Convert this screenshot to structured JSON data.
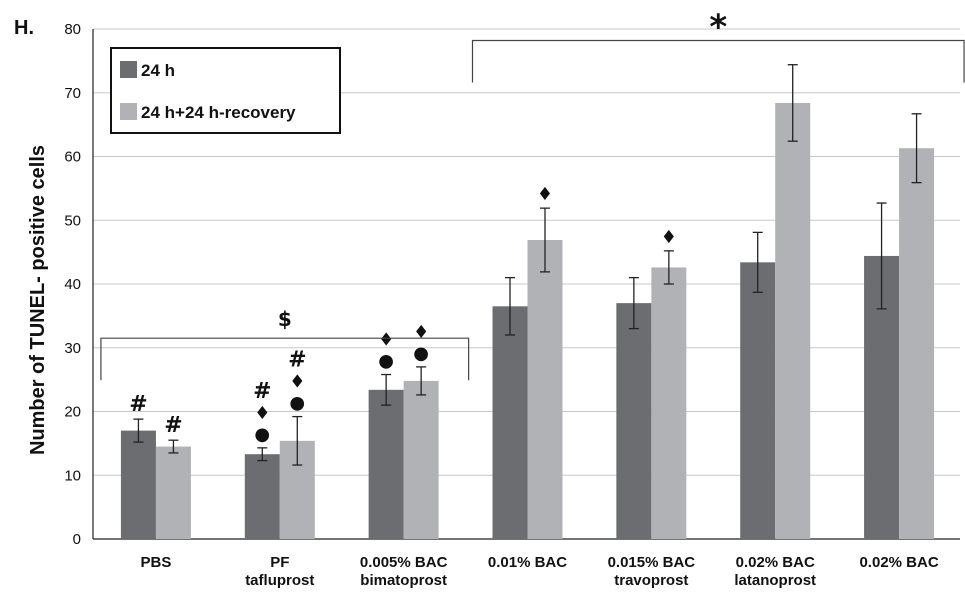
{
  "panel_label": "H.",
  "chart_data": {
    "type": "bar",
    "ylabel": "Number of TUNEL- positive cells",
    "xlabel": "",
    "ylim": [
      0,
      80
    ],
    "yticks": [
      0,
      10,
      20,
      30,
      40,
      50,
      60,
      70,
      80
    ],
    "grid": true,
    "legend_position": "top-left",
    "categories": [
      [
        "PBS"
      ],
      [
        "PF",
        "tafluprost"
      ],
      [
        "0.005% BAC",
        "bimatoprost"
      ],
      [
        "0.01% BAC"
      ],
      [
        "0.015% BAC",
        "travoprost"
      ],
      [
        "0.02% BAC",
        "latanoprost"
      ],
      [
        "0.02% BAC"
      ]
    ],
    "series": [
      {
        "name": "24 h",
        "color": "#6b6d71",
        "values": [
          17.0,
          13.3,
          23.4,
          36.5,
          37.0,
          43.4,
          44.4
        ],
        "errors": [
          1.8,
          1.0,
          2.4,
          4.5,
          4.0,
          4.7,
          8.3
        ]
      },
      {
        "name": "24 h+24 h-recovery",
        "color": "#b1b2b5",
        "values": [
          14.5,
          15.4,
          24.8,
          46.9,
          42.6,
          68.4,
          61.3
        ],
        "errors": [
          1.0,
          3.8,
          2.2,
          5.0,
          2.6,
          6.0,
          5.4
        ]
      }
    ],
    "annotations": [
      {
        "category": 0,
        "series": 0,
        "symbols": [
          "#"
        ]
      },
      {
        "category": 0,
        "series": 1,
        "symbols": [
          "#"
        ]
      },
      {
        "category": 1,
        "series": 0,
        "symbols": [
          "#",
          "♦",
          "●"
        ]
      },
      {
        "category": 1,
        "series": 1,
        "symbols": [
          "#",
          "♦",
          "●"
        ]
      },
      {
        "category": 2,
        "series": 0,
        "symbols": [
          "♦",
          "●"
        ]
      },
      {
        "category": 2,
        "series": 1,
        "symbols": [
          "♦",
          "●"
        ]
      },
      {
        "category": 3,
        "series": 1,
        "symbols": [
          "♦"
        ]
      },
      {
        "category": 4,
        "series": 1,
        "symbols": [
          "♦"
        ]
      }
    ],
    "brackets": [
      {
        "label": "$",
        "from_category": 0,
        "to_category": 2,
        "level": 31.5
      },
      {
        "label": "*",
        "from_category": 3,
        "to_category": 6,
        "level": 78.2
      }
    ]
  }
}
